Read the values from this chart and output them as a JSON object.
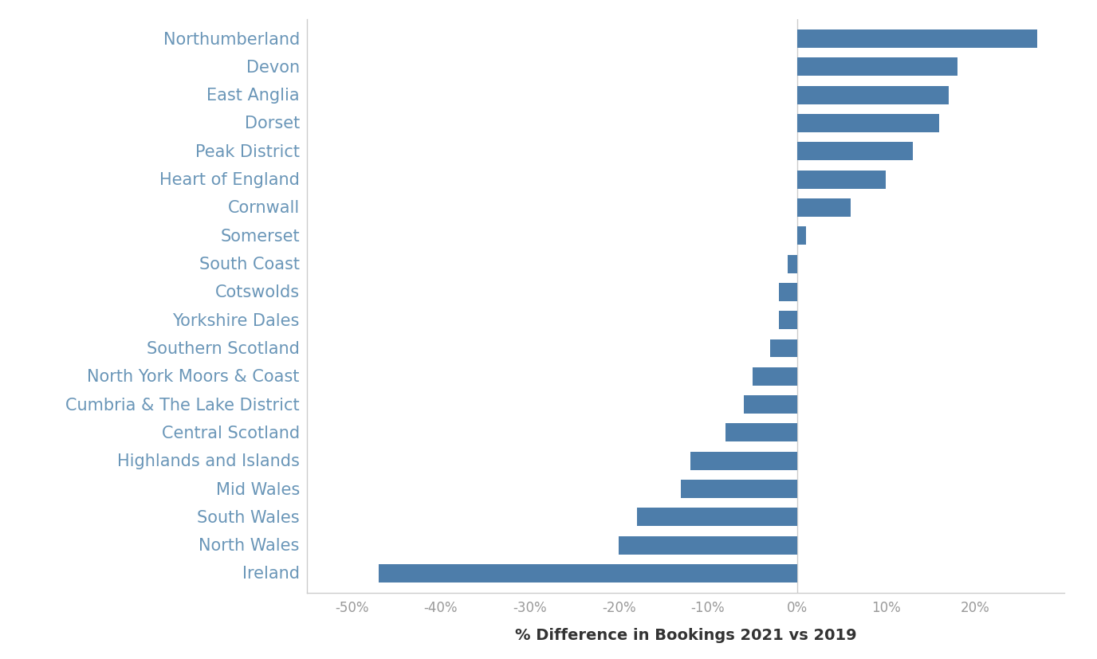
{
  "categories": [
    "Ireland",
    "North Wales",
    "South Wales",
    "Mid Wales",
    "Highlands and Islands",
    "Central Scotland",
    "Cumbria & The Lake District",
    "North York Moors & Coast",
    "Southern Scotland",
    "Yorkshire Dales",
    "Cotswolds",
    "South Coast",
    "Somerset",
    "Cornwall",
    "Heart of England",
    "Peak District",
    "Dorset",
    "East Anglia",
    "Devon",
    "Northumberland"
  ],
  "values": [
    -47,
    -20,
    -18,
    -13,
    -12,
    -8,
    -6,
    -5,
    -3,
    -2,
    -2,
    -1,
    1,
    6,
    10,
    13,
    16,
    17,
    18,
    27
  ],
  "bar_color": "#4d7daa",
  "background_color": "#ffffff",
  "xlabel": "% Difference in Bookings 2021 vs 2019",
  "xlim": [
    -55,
    30
  ],
  "xticks": [
    -50,
    -40,
    -30,
    -20,
    -10,
    0,
    10,
    20
  ],
  "xtick_labels": [
    "-50%",
    "-40%",
    "-30%",
    "-20%",
    "-10%",
    "0%",
    "10%",
    "20%"
  ],
  "label_color": "#6a96b8",
  "label_fontsize": 15,
  "xlabel_fontsize": 14,
  "tick_fontsize": 12
}
